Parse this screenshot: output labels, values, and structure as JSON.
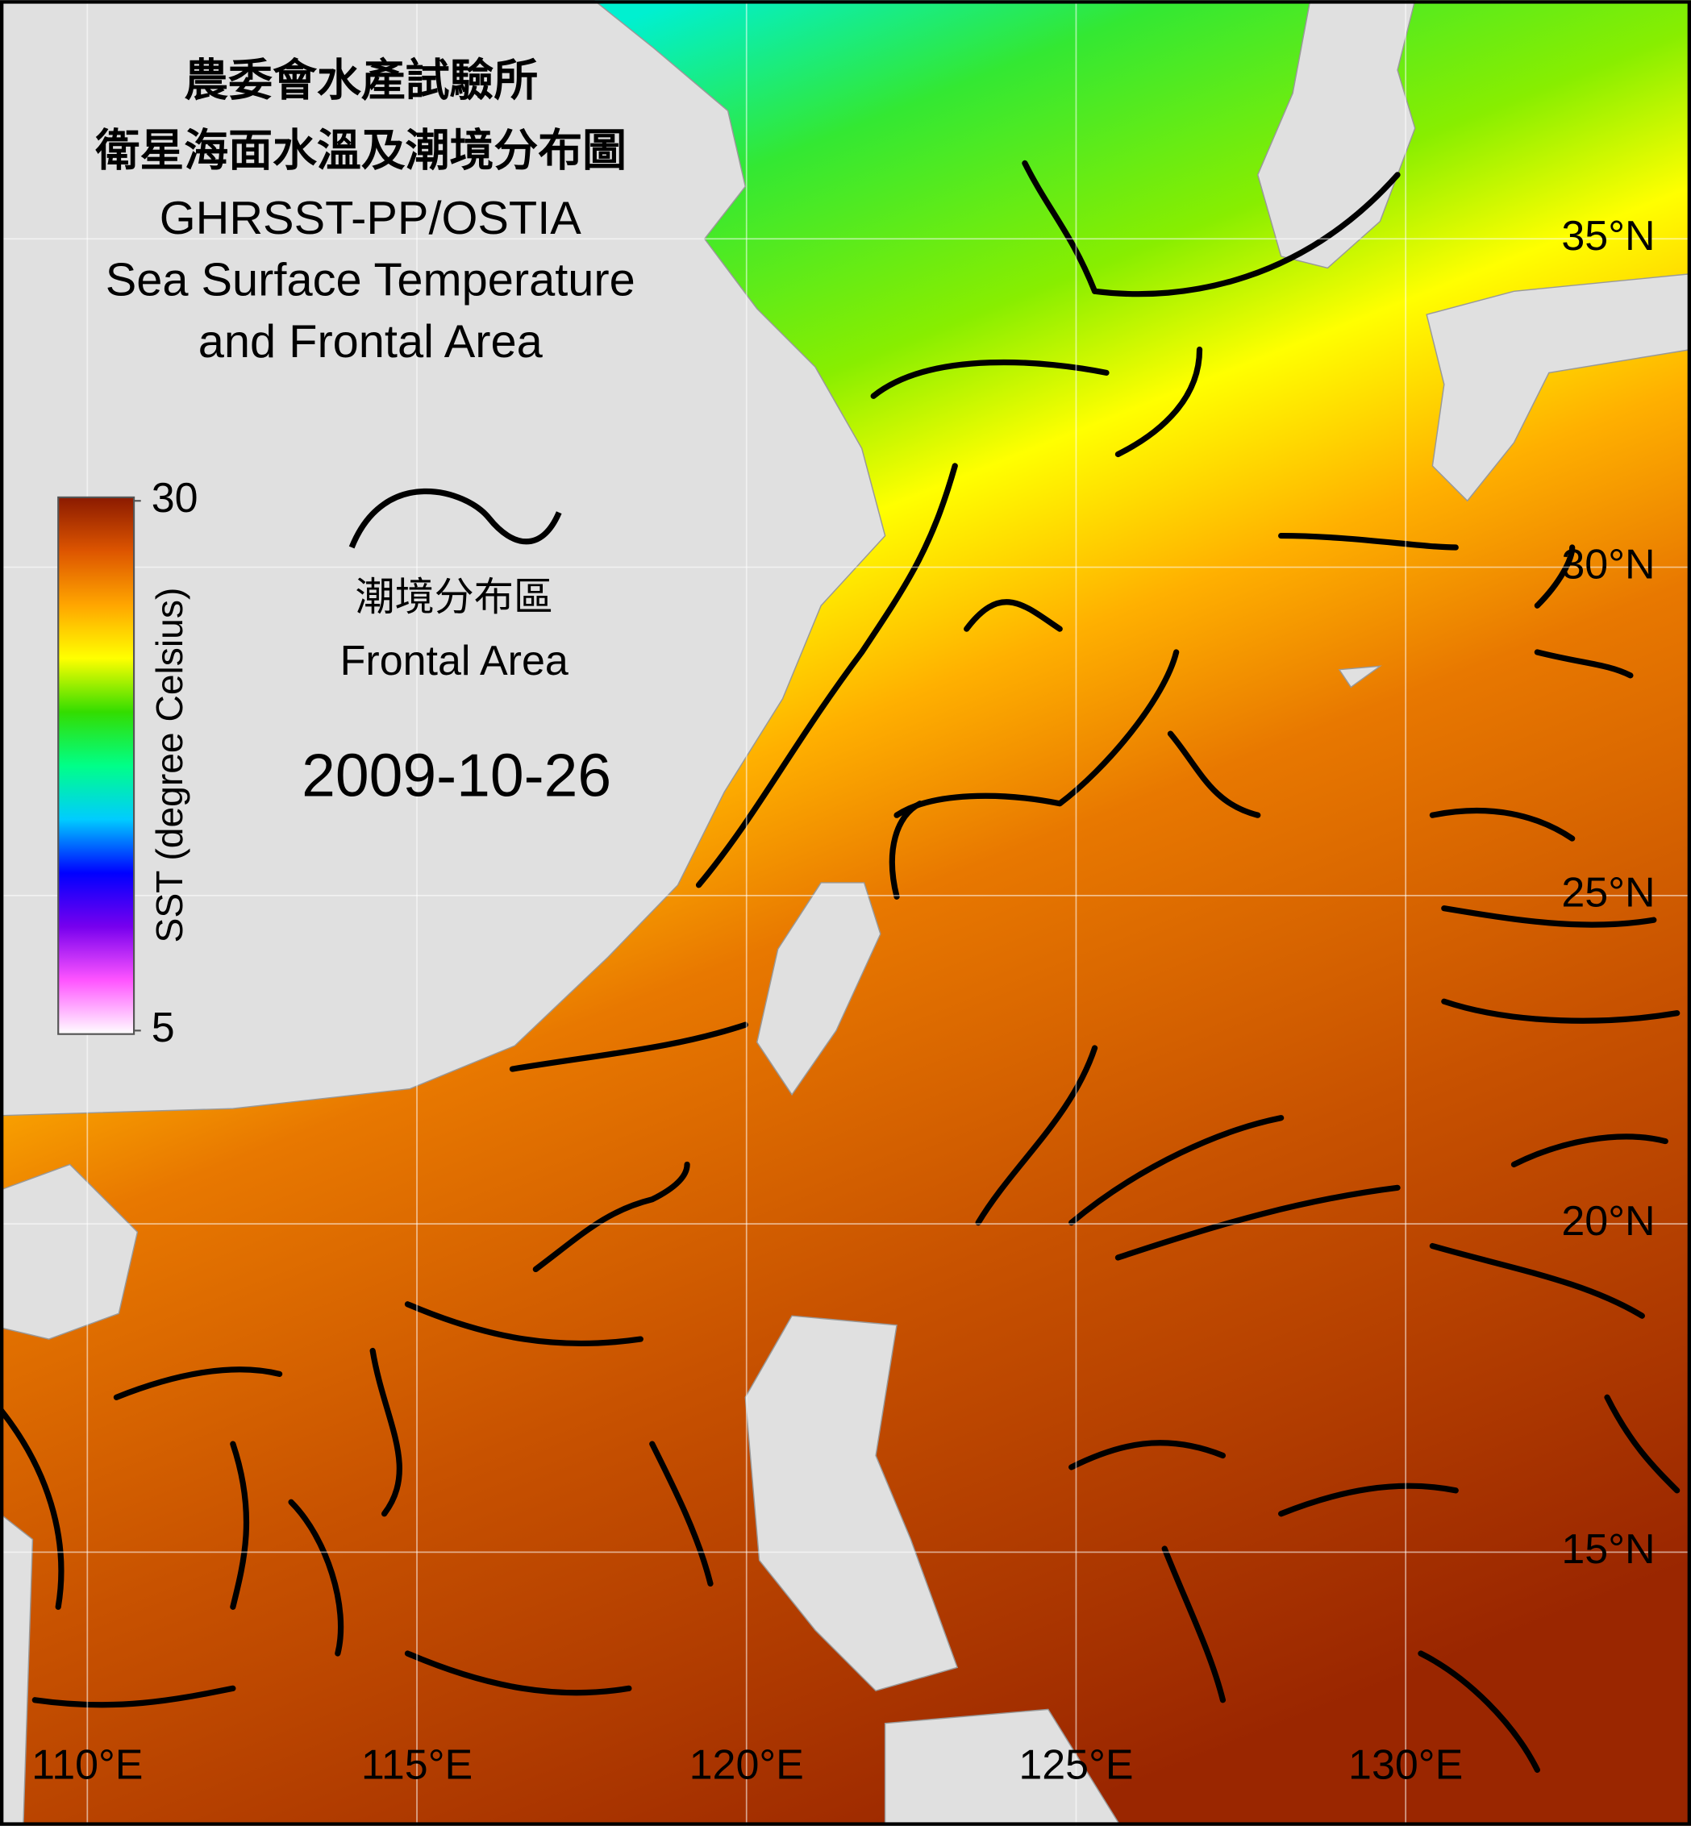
{
  "title": {
    "lines": [
      "農委會水產試驗所",
      "衛星海面水溫及潮境分布圖",
      "GHRSST-PP/OSTIA",
      "Sea Surface Temperature",
      "and Frontal Area"
    ]
  },
  "colorbar": {
    "lim": [
      5,
      30
    ],
    "ticks": [
      5,
      30
    ],
    "label": "SST (degree Celsius)",
    "colors": [
      "#ffffff",
      "#ff55ff",
      "#7700ee",
      "#0000ff",
      "#00ccff",
      "#00ff88",
      "#33dd00",
      "#ffff00",
      "#ffa500",
      "#dd5500",
      "#8b1a00"
    ]
  },
  "legend": {
    "label_zh": "潮境分布區",
    "label_en": "Frontal Area"
  },
  "date": "2009-10-26",
  "map": {
    "lon_ticks": [
      {
        "value": 110,
        "label": "110°E"
      },
      {
        "value": 115,
        "label": "115°E"
      },
      {
        "value": 120,
        "label": "120°E"
      },
      {
        "value": 125,
        "label": "125°E"
      },
      {
        "value": 130,
        "label": "130°E"
      }
    ],
    "lat_ticks": [
      {
        "value": 35,
        "label": "35°N"
      },
      {
        "value": 30,
        "label": "30°N"
      },
      {
        "value": 25,
        "label": "25°N"
      },
      {
        "value": 20,
        "label": "20°N"
      },
      {
        "value": 15,
        "label": "15°N"
      }
    ]
  }
}
